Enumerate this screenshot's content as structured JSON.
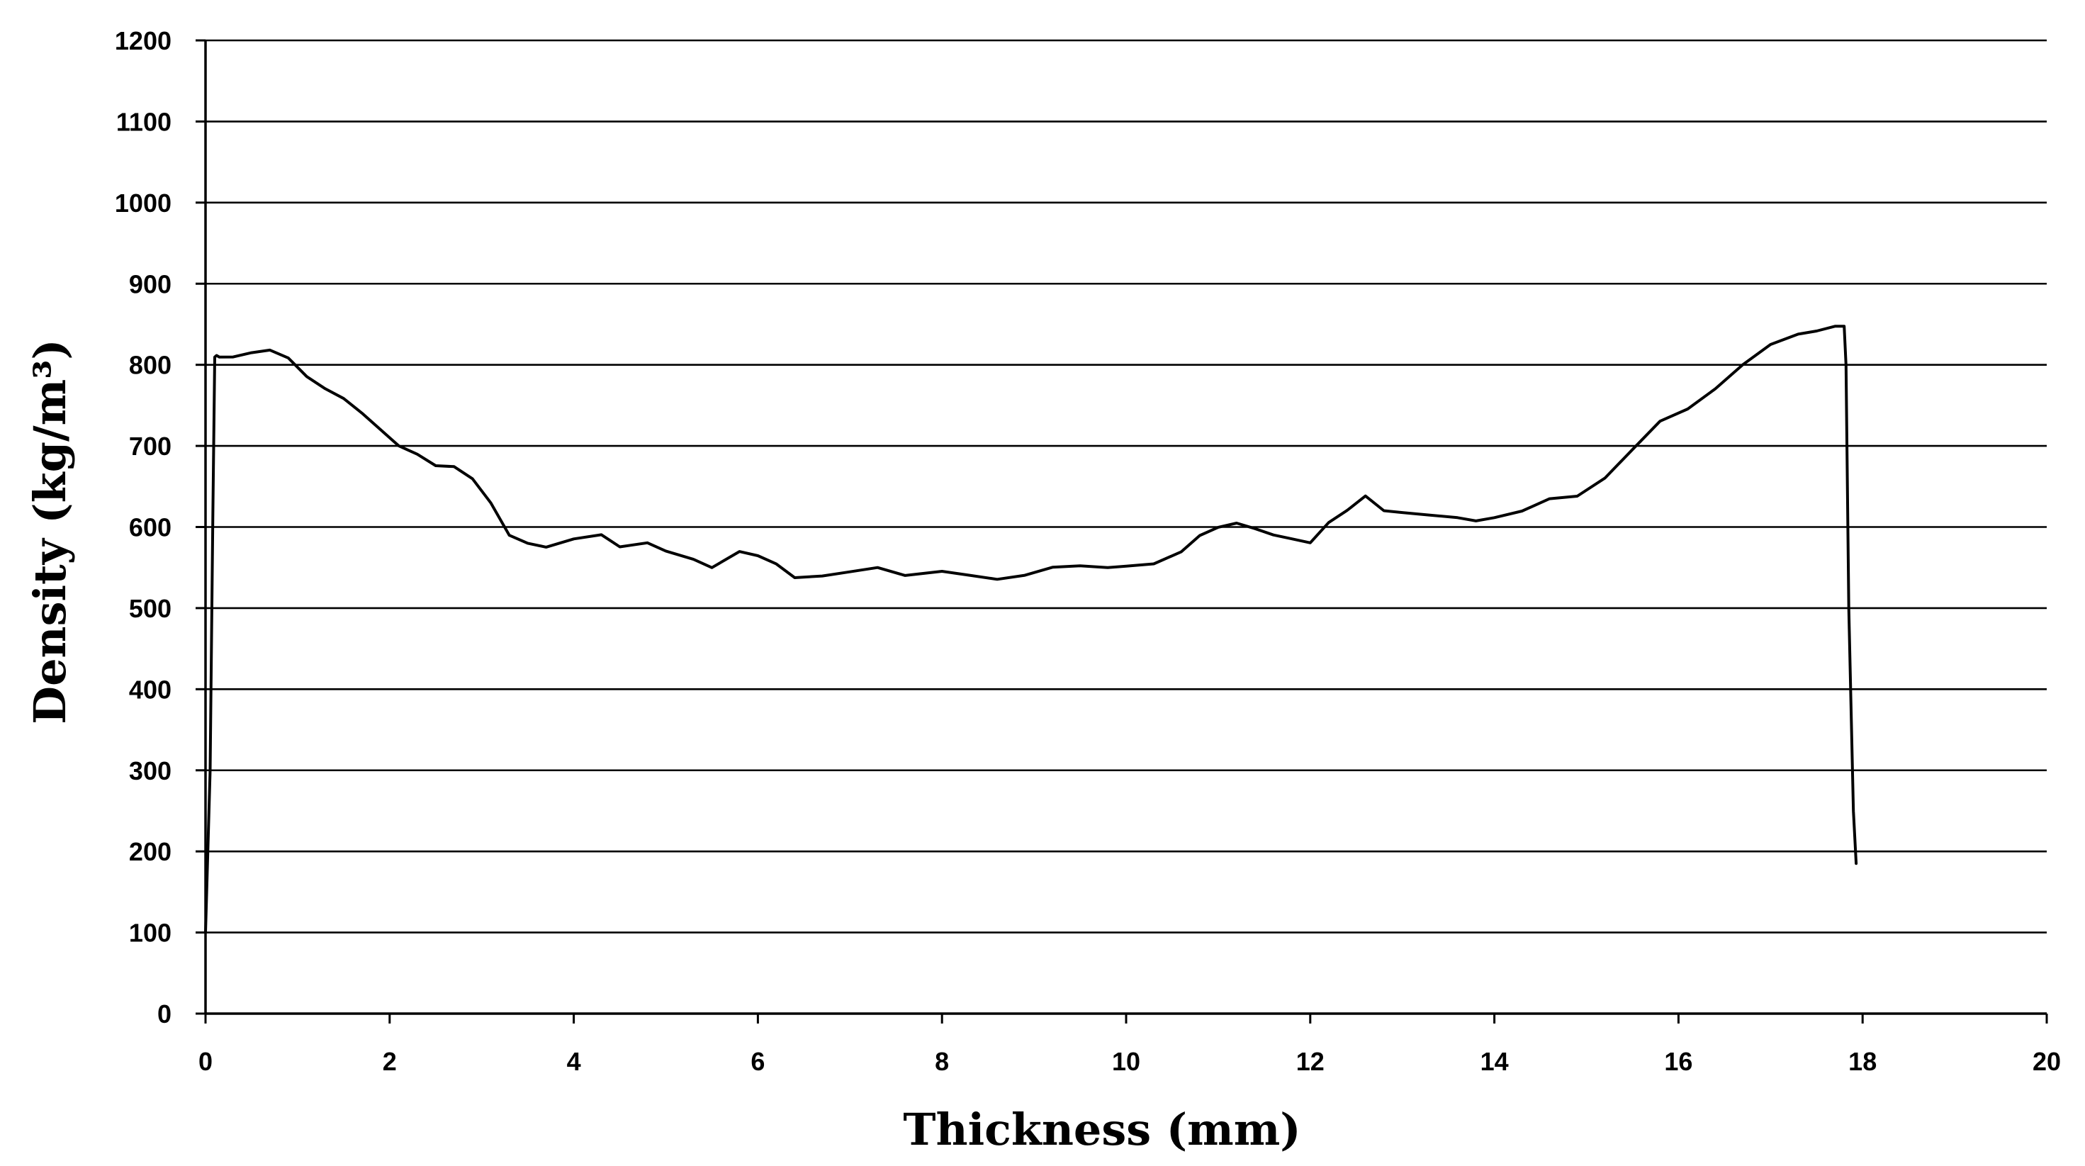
{
  "chart_data": {
    "type": "line",
    "title": "",
    "xlabel": "Thickness (mm)",
    "ylabel": "Density (kg/m³)",
    "xlim": [
      0,
      20
    ],
    "ylim": [
      0,
      1200
    ],
    "xticks": [
      "0",
      "2",
      "4",
      "6",
      "8",
      "10",
      "12",
      "14",
      "16",
      "18",
      "20"
    ],
    "yticks": [
      "0",
      "100",
      "200",
      "300",
      "400",
      "500",
      "600",
      "700",
      "800",
      "900",
      "1000",
      "1100",
      "1200"
    ],
    "grid": "horizontal",
    "legend": "none",
    "line_color": "#000000",
    "series": [
      {
        "x": [
          0.0,
          0.05,
          0.08,
          0.1,
          0.12,
          0.15,
          0.3,
          0.5,
          0.7,
          0.9,
          1.1,
          1.3,
          1.5,
          1.7,
          1.9,
          2.1,
          2.3,
          2.5,
          2.7,
          2.9,
          3.1,
          3.3,
          3.5,
          3.7,
          4.0,
          4.3,
          4.5,
          4.8,
          5.0,
          5.3,
          5.5,
          5.8,
          6.0,
          6.2,
          6.4,
          6.7,
          7.0,
          7.3,
          7.6,
          8.0,
          8.3,
          8.6,
          8.9,
          9.2,
          9.5,
          9.8,
          10.0,
          10.3,
          10.6,
          10.8,
          11.0,
          11.2,
          11.4,
          11.6,
          11.8,
          12.0,
          12.2,
          12.4,
          12.6,
          12.8,
          13.0,
          13.3,
          13.6,
          13.8,
          14.0,
          14.3,
          14.6,
          14.9,
          15.2,
          15.5,
          15.8,
          16.1,
          16.4,
          16.7,
          17.0,
          17.3,
          17.5,
          17.7,
          17.8,
          17.82,
          17.85,
          17.9,
          17.93
        ],
        "y": [
          100,
          300,
          620,
          810,
          812,
          810,
          810,
          815,
          818,
          808,
          785,
          770,
          758,
          740,
          720,
          700,
          690,
          676,
          675,
          660,
          630,
          590,
          580,
          575,
          585,
          590,
          575,
          580,
          570,
          560,
          550,
          570,
          565,
          555,
          538,
          540,
          545,
          550,
          540,
          545,
          540,
          535,
          540,
          550,
          552,
          550,
          552,
          555,
          570,
          590,
          600,
          605,
          598,
          590,
          585,
          580,
          605,
          620,
          638,
          620,
          618,
          615,
          612,
          608,
          612,
          620,
          635,
          638,
          660,
          695,
          730,
          745,
          770,
          800,
          825,
          838,
          842,
          848,
          848,
          800,
          500,
          250,
          185
        ]
      }
    ]
  }
}
